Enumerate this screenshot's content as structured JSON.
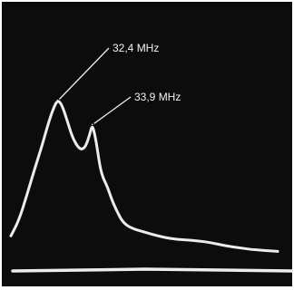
{
  "chart_data": {
    "type": "line",
    "title": "",
    "xlabel": "",
    "ylabel": "",
    "grid": false,
    "colors": {
      "background": "#0c0c0c",
      "trace": "#ececec",
      "text": "#f2f2f2",
      "frame": "#ffffff"
    },
    "xlim": [
      0,
      100
    ],
    "ylim": [
      0,
      100
    ],
    "series": [
      {
        "values": [
          [
            0,
            12
          ],
          [
            3,
            20
          ],
          [
            6,
            33
          ],
          [
            9,
            47
          ],
          [
            12,
            60
          ],
          [
            14,
            70
          ],
          [
            16,
            78
          ],
          [
            17.5,
            82
          ],
          [
            19,
            80
          ],
          [
            21,
            72
          ],
          [
            23,
            63
          ],
          [
            25,
            58
          ],
          [
            26.5,
            56.5
          ],
          [
            28,
            58
          ],
          [
            29.5,
            64
          ],
          [
            30.5,
            69.5
          ],
          [
            31.5,
            64
          ],
          [
            32.5,
            56
          ],
          [
            33.5,
            47
          ],
          [
            34.5,
            42
          ],
          [
            36,
            38
          ],
          [
            38,
            30
          ],
          [
            40,
            24
          ],
          [
            42,
            19
          ],
          [
            45,
            16
          ],
          [
            50,
            14
          ],
          [
            55,
            12
          ],
          [
            60,
            10.5
          ],
          [
            65,
            10
          ],
          [
            70,
            9.5
          ],
          [
            75,
            8.5
          ],
          [
            80,
            7
          ],
          [
            85,
            6
          ],
          [
            90,
            5
          ],
          [
            95,
            4.5
          ],
          [
            100,
            4
          ]
        ]
      }
    ],
    "annotations": [
      {
        "text": "32,4 MHz",
        "x": 17.5,
        "y": 82
      },
      {
        "text": "33,9 MHz",
        "x": 30.5,
        "y": 69.5
      }
    ]
  }
}
